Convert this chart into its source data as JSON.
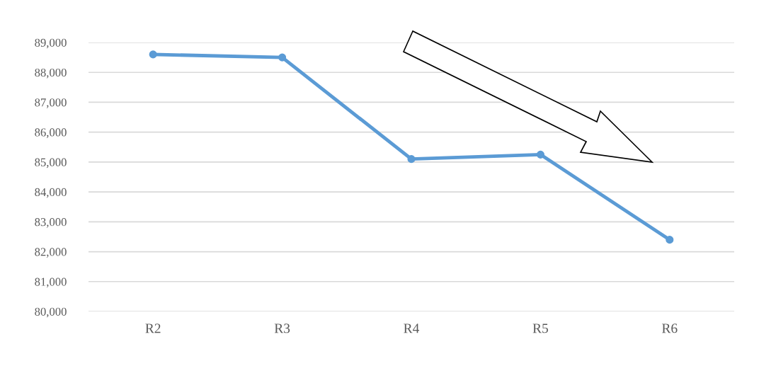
{
  "chart_data": {
    "type": "line",
    "categories": [
      "R2",
      "R3",
      "R4",
      "R5",
      "R6"
    ],
    "series": [
      {
        "color": "#5b9bd5",
        "values": [
          88600,
          88500,
          85100,
          85250,
          82400
        ]
      }
    ],
    "ylim": [
      80000,
      89000
    ],
    "yticks": [
      {
        "value": 80000,
        "label": "80,000"
      },
      {
        "value": 81000,
        "label": "81,000"
      },
      {
        "value": 82000,
        "label": "82,000"
      },
      {
        "value": 83000,
        "label": "83,000"
      },
      {
        "value": 84000,
        "label": "84,000"
      },
      {
        "value": 85000,
        "label": "85,000"
      },
      {
        "value": 86000,
        "label": "86,000"
      },
      {
        "value": 87000,
        "label": "87,000"
      },
      {
        "value": 88000,
        "label": "88,000"
      },
      {
        "value": 89000,
        "label": "89,000"
      }
    ],
    "grid": "y",
    "marker": "circle",
    "line_style": "solid",
    "legend": false
  }
}
